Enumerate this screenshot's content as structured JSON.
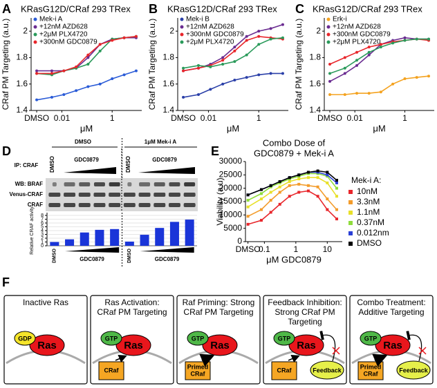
{
  "chart_data": [
    {
      "type": "line",
      "panel": "A",
      "title": "KRasG12D/CRaf 293 TRex",
      "x_label": "μM",
      "y_label": "CRaf PM Targeting (a.u.)",
      "log_x": true,
      "x": [
        0.001,
        0.004,
        0.012,
        0.037,
        0.11,
        0.33,
        1,
        3,
        9
      ],
      "xlim": [
        0.0006,
        15
      ],
      "xticks": [
        {
          "value": 0.001,
          "label": "DMSO"
        },
        0.01,
        1
      ],
      "ylim": [
        1.4,
        2.1
      ],
      "yticks": [
        1.4,
        1.6,
        1.8,
        2.0
      ],
      "legend": "top-left",
      "series": [
        {
          "name": "Mek-i A",
          "color": "#2a5bd7",
          "values": [
            1.48,
            1.5,
            1.52,
            1.55,
            1.58,
            1.6,
            1.64,
            1.67,
            1.7
          ]
        },
        {
          "name": "+12nM AZD628",
          "color": "#6a2c91",
          "values": [
            1.7,
            1.7,
            1.7,
            1.72,
            1.8,
            1.9,
            1.94,
            1.95,
            1.95
          ]
        },
        {
          "name": "+2μM PLX4720",
          "color": "#2a9a5a",
          "values": [
            1.68,
            1.67,
            1.7,
            1.72,
            1.75,
            1.85,
            1.94,
            1.95,
            1.96
          ]
        },
        {
          "name": "+300nM GDC0879",
          "color": "#e8262b",
          "values": [
            1.68,
            1.68,
            1.7,
            1.73,
            1.82,
            1.9,
            1.93,
            1.95,
            1.96
          ]
        }
      ]
    },
    {
      "type": "line",
      "panel": "B",
      "title": "KRasG12D/CRaf 293 TRex",
      "x_label": "μM",
      "y_label": "CRaf PM Targeting (a.u.)",
      "log_x": true,
      "x": [
        0.001,
        0.004,
        0.012,
        0.037,
        0.11,
        0.33,
        1,
        3,
        9
      ],
      "xlim": [
        0.0006,
        15
      ],
      "xticks": [
        {
          "value": 0.001,
          "label": "DMSO"
        },
        0.01,
        1
      ],
      "ylim": [
        1.4,
        2.1
      ],
      "yticks": [
        1.4,
        1.6,
        1.8,
        2.0
      ],
      "legend": "top-left",
      "series": [
        {
          "name": "Mek-i B",
          "color": "#2a3fa8",
          "values": [
            1.5,
            1.52,
            1.56,
            1.6,
            1.63,
            1.65,
            1.67,
            1.68,
            1.68
          ]
        },
        {
          "name": "+12nM AZD628",
          "color": "#6a2c91",
          "values": [
            1.7,
            1.72,
            1.75,
            1.8,
            1.88,
            1.96,
            2.0,
            2.02,
            2.05
          ]
        },
        {
          "name": "+300nM GDC0879",
          "color": "#e8262b",
          "values": [
            1.7,
            1.72,
            1.74,
            1.78,
            1.85,
            1.93,
            1.96,
            1.95,
            1.94
          ]
        },
        {
          "name": "+2μM PLX4720",
          "color": "#2a9a5a",
          "values": [
            1.72,
            1.74,
            1.73,
            1.75,
            1.77,
            1.82,
            1.9,
            1.94,
            1.95
          ]
        }
      ]
    },
    {
      "type": "line",
      "panel": "C",
      "title": "KRasG12D/CRaf 293 TRex",
      "x_label": "μM",
      "y_label": "CRaf PM Targeting (a.u.)",
      "log_x": true,
      "x": [
        0.001,
        0.004,
        0.012,
        0.037,
        0.11,
        0.33,
        1,
        3,
        9
      ],
      "xlim": [
        0.0006,
        15
      ],
      "xticks": [
        {
          "value": 0.001,
          "label": "DMSO"
        },
        0.01,
        1
      ],
      "ylim": [
        1.4,
        2.1
      ],
      "yticks": [
        1.4,
        1.6,
        1.8,
        2.0
      ],
      "legend": "top-left",
      "series": [
        {
          "name": "Erk-i",
          "color": "#f4a21f",
          "values": [
            1.52,
            1.52,
            1.53,
            1.53,
            1.54,
            1.6,
            1.64,
            1.65,
            1.66
          ]
        },
        {
          "name": "+12nM AZD628",
          "color": "#6a2c91",
          "values": [
            1.62,
            1.68,
            1.74,
            1.82,
            1.9,
            1.93,
            1.95,
            1.94,
            1.94
          ]
        },
        {
          "name": "+300nM GDC0879",
          "color": "#e8262b",
          "values": [
            1.75,
            1.8,
            1.84,
            1.88,
            1.9,
            1.92,
            1.93,
            1.94,
            1.93
          ]
        },
        {
          "name": "+2μM PLX4720",
          "color": "#2a9a5a",
          "values": [
            1.68,
            1.72,
            1.78,
            1.84,
            1.88,
            1.91,
            1.93,
            1.94,
            1.94
          ]
        }
      ]
    },
    {
      "type": "bar",
      "y_label": "Relative CRAF activity",
      "color": "#1a35d8",
      "categories": [
        "DMSO",
        null,
        null,
        null,
        null,
        "DMSO",
        null,
        null,
        null,
        null
      ],
      "values": [
        1,
        1.7,
        3.5,
        4.2,
        4.4,
        1.1,
        2.9,
        4.7,
        6.3,
        6.9
      ],
      "group_labels": [
        "GDC0879",
        "GDC0879"
      ],
      "ylim": [
        0,
        8
      ],
      "yticks": [
        0,
        1,
        2,
        3,
        4,
        5,
        6,
        7,
        8
      ]
    },
    {
      "type": "line",
      "panel": "E",
      "title": [
        "Combo Dose of",
        "GDC0879 + Mek-i A"
      ],
      "x_label": "μM GDC0879",
      "y_label": "Viability (a.u)",
      "log_x": true,
      "x": [
        0.03,
        0.08,
        0.16,
        0.31,
        0.63,
        1.25,
        2.5,
        5,
        10,
        20
      ],
      "xlim": [
        0.025,
        30
      ],
      "xticks": [
        {
          "value": 0.03,
          "label": "DMSO"
        },
        0.1,
        1,
        10
      ],
      "ylim": [
        0,
        30000
      ],
      "yticks": [
        0,
        5000,
        10000,
        15000,
        20000,
        25000,
        30000
      ],
      "legend": "right",
      "legend_title": "Mek-i A:",
      "series": [
        {
          "name": "10nM",
          "color": "#e8262b",
          "values": [
            6500,
            8000,
            11000,
            14000,
            17000,
            18500,
            19000,
            17000,
            12000,
            8500
          ]
        },
        {
          "name": "3.3nM",
          "color": "#f39c2b",
          "values": [
            9500,
            12000,
            15500,
            18500,
            21000,
            21500,
            21000,
            20500,
            16000,
            12000
          ]
        },
        {
          "name": "1.1nM",
          "color": "#e8e02a",
          "values": [
            13000,
            16000,
            18500,
            20500,
            22500,
            23500,
            24000,
            24000,
            22000,
            17000
          ]
        },
        {
          "name": "0.37nM",
          "color": "#8fdc3c",
          "values": [
            15500,
            18000,
            20500,
            22000,
            23500,
            24500,
            25500,
            25500,
            24500,
            20000
          ]
        },
        {
          "name": "0.012nm",
          "color": "#2a3fd6",
          "values": [
            17500,
            19500,
            21000,
            22500,
            24000,
            25000,
            26000,
            26000,
            25000,
            22000
          ]
        },
        {
          "name": "DMSO",
          "color": "#000000",
          "values": [
            17500,
            19500,
            21000,
            22500,
            24000,
            25000,
            26000,
            26500,
            26000,
            23000
          ]
        }
      ]
    }
  ],
  "blot": {
    "panel": "D",
    "conditions": [
      "DMSO",
      "1μM  Mek-i A"
    ],
    "ip": "IP: CRAF",
    "lane_labels": [
      "DMSO",
      "DMSO"
    ],
    "drug_labels": [
      "GDC0879",
      "GDC0879"
    ],
    "rows": [
      "WB: BRAF",
      "Venus-CRAF",
      "CRAF"
    ]
  },
  "diagram": {
    "panel": "F",
    "boxes": [
      {
        "title": [
          "Inactive Ras"
        ],
        "nucleotide": "GDP",
        "ras": "Ras"
      },
      {
        "title": [
          "Ras Activation:",
          "CRaf PM Targeting"
        ],
        "nucleotide": "GTP",
        "ras": "Ras",
        "raf": [
          "CRaf"
        ]
      },
      {
        "title": [
          "Raf Priming: Strong",
          "CRaf PM Targeting"
        ],
        "nucleotide": "GTP",
        "ras": "Ras",
        "raf": [
          "Primed",
          "CRaf"
        ]
      },
      {
        "title": [
          "Feedback Inhibition:",
          "Strong CRaf PM",
          "Targeting"
        ],
        "nucleotide": "GTP",
        "ras": "Ras",
        "raf": [
          "CRaf"
        ],
        "feedback": "Feedback"
      },
      {
        "title": [
          "Combo Treatment:",
          "Additive Targeting"
        ],
        "nucleotide": "GTP",
        "ras": "Ras",
        "raf": [
          "Primed",
          "CRaf"
        ],
        "feedback": "Feedback"
      }
    ]
  }
}
